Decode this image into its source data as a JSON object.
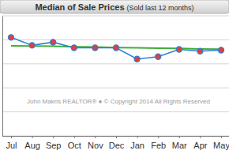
{
  "chart_data": {
    "type": "line",
    "title": "Median of Sale Prices",
    "subtitle": "(Sold last 12 months)",
    "annotation": "John Makris REALTOR®  ●  © Copyright 2014 All Rights Reserved",
    "categories": [
      "Jul",
      "Aug",
      "Sep",
      "Oct",
      "Nov",
      "Dec",
      "Jan",
      "Feb",
      "Mar",
      "Apr",
      "May"
    ],
    "series": [
      {
        "color": "#2f80d8",
        "marker": "circle",
        "line_style": "solid",
        "values": [
          4.1,
          3.77,
          3.9,
          3.67,
          3.67,
          3.67,
          3.2,
          3.3,
          3.6,
          3.53,
          3.57
        ]
      },
      {
        "color": "#3fae3a",
        "line_style": "solid",
        "values": [
          3.75,
          3.74,
          3.73,
          3.71,
          3.7,
          3.68,
          3.67,
          3.65,
          3.64,
          3.62,
          3.61
        ]
      }
    ],
    "ylim": [
      0,
      5
    ],
    "yticks": [
      0,
      1,
      2,
      3,
      4,
      5
    ],
    "grid": true,
    "tick_labels": "x"
  }
}
